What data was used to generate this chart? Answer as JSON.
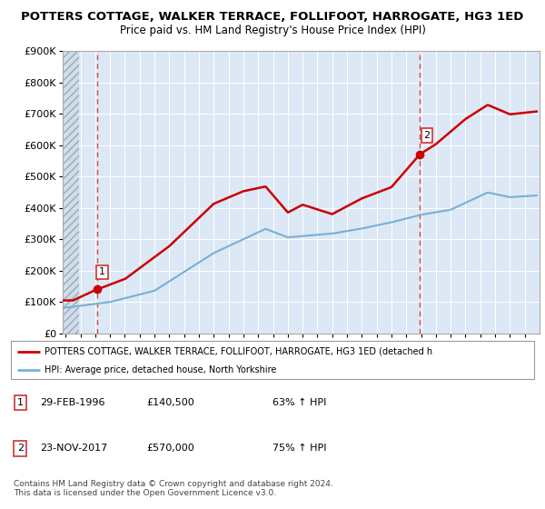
{
  "title": "POTTERS COTTAGE, WALKER TERRACE, FOLLIFOOT, HARROGATE, HG3 1ED",
  "subtitle": "Price paid vs. HM Land Registry's House Price Index (HPI)",
  "ylim": [
    0,
    900000
  ],
  "yticks": [
    0,
    100000,
    200000,
    300000,
    400000,
    500000,
    600000,
    700000,
    800000,
    900000
  ],
  "ytick_labels": [
    "£0",
    "£100K",
    "£200K",
    "£300K",
    "£400K",
    "£500K",
    "£600K",
    "£700K",
    "£800K",
    "£900K"
  ],
  "sale1": {
    "date_num": 1996.16,
    "price": 140500,
    "label": "1"
  },
  "sale2": {
    "date_num": 2017.9,
    "price": 570000,
    "label": "2"
  },
  "legend_line1": "POTTERS COTTAGE, WALKER TERRACE, FOLLIFOOT, HARROGATE, HG3 1ED (detached h",
  "legend_line2": "HPI: Average price, detached house, North Yorkshire",
  "table_row1": [
    "1",
    "29-FEB-1996",
    "£140,500",
    "63% ↑ HPI"
  ],
  "table_row2": [
    "2",
    "23-NOV-2017",
    "£570,000",
    "75% ↑ HPI"
  ],
  "footer": "Contains HM Land Registry data © Crown copyright and database right 2024.\nThis data is licensed under the Open Government Licence v3.0.",
  "hpi_color": "#7aafd4",
  "price_color": "#cc0000",
  "dashed_line_color": "#dd4444",
  "background_plot": "#dce8f5",
  "xlim_left": 1993.8,
  "xlim_right": 2026.0
}
